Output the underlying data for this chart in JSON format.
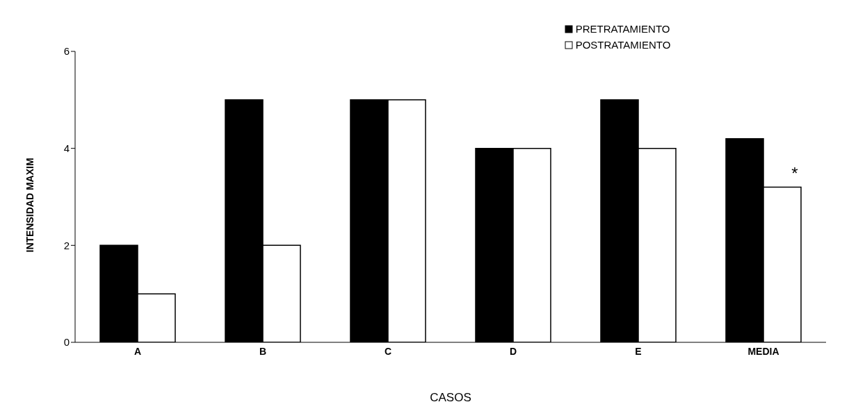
{
  "chart_data": {
    "type": "bar",
    "xlabel": "CASOS",
    "ylabel": "INTENSIDAD MAXIM",
    "categories": [
      "A",
      "B",
      "C",
      "D",
      "E",
      "MEDIA"
    ],
    "series": [
      {
        "name": "PRETRATAMIENTO",
        "color": "#000000",
        "values": [
          2,
          5,
          5,
          4,
          5,
          4.2
        ]
      },
      {
        "name": "POSTRATAMIENTO",
        "color": "#ffffff",
        "values": [
          1,
          2,
          5,
          4,
          4,
          3.2
        ]
      }
    ],
    "ylim": [
      0,
      6
    ],
    "yticks": [
      0,
      2,
      4,
      6
    ],
    "legend": "top",
    "annotations": [
      {
        "text": "*",
        "x": "MEDIA",
        "y": 3.2
      }
    ]
  }
}
